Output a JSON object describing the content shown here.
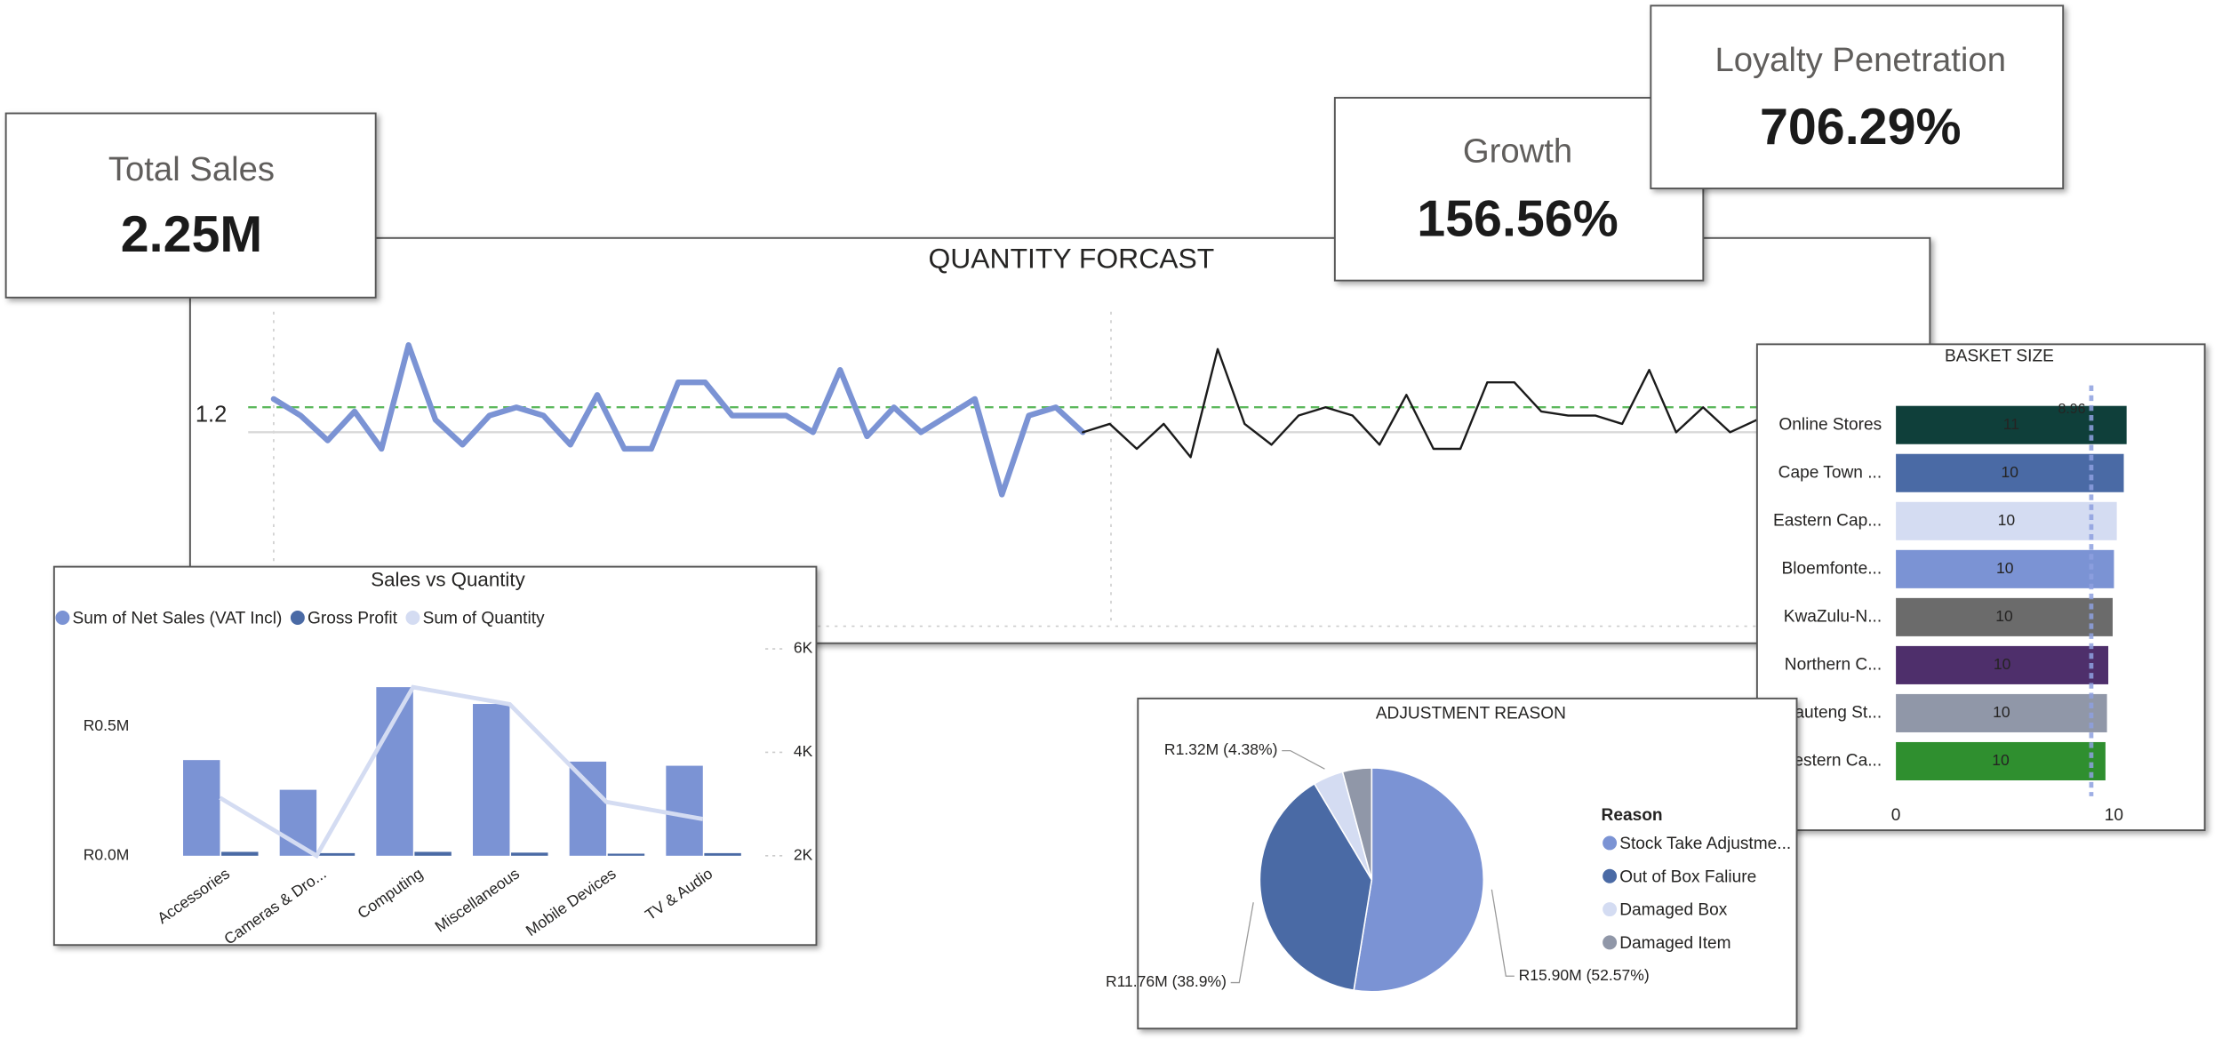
{
  "cards": [
    {
      "label": "Total Sales",
      "value": "2.25M"
    },
    {
      "label": "Growth",
      "value": "156.56%"
    },
    {
      "label": "Loyalty Penetration",
      "value": "706.29%"
    }
  ],
  "chart_data": [
    {
      "type": "line",
      "title": "QUANTITY FORCAST",
      "x": [
        0,
        1,
        2,
        3,
        4,
        5,
        6,
        7,
        8,
        9,
        10,
        11,
        12,
        13,
        14,
        15,
        16,
        17,
        18,
        19,
        20,
        21,
        22,
        23,
        24,
        25,
        26,
        27,
        28,
        29,
        30,
        31,
        32,
        33,
        34,
        35,
        36,
        37,
        38,
        39,
        40,
        41,
        42,
        43,
        44,
        45,
        46,
        47,
        48,
        49,
        50,
        51,
        52,
        53,
        54,
        55
      ],
      "series": [
        {
          "color": "#7b93d4",
          "width": 4,
          "values": [
            1.24,
            1.2,
            1.14,
            1.21,
            1.12,
            1.37,
            1.19,
            1.13,
            1.2,
            1.22,
            1.2,
            1.13,
            1.25,
            1.12,
            1.12,
            1.28,
            1.28,
            1.2,
            1.2,
            1.2,
            1.16,
            1.31,
            1.15,
            1.22,
            1.16,
            1.2,
            1.24,
            1.01,
            1.2,
            1.22,
            1.16,
            null,
            null,
            null,
            null,
            null,
            null,
            null,
            null,
            null,
            null,
            null,
            null,
            null,
            null,
            null,
            null,
            null,
            null,
            null,
            null,
            null,
            null,
            null,
            null,
            null
          ]
        },
        {
          "color": "#1b1b1b",
          "width": 1.5,
          "values": [
            null,
            null,
            null,
            null,
            null,
            null,
            null,
            null,
            null,
            null,
            null,
            null,
            null,
            null,
            null,
            null,
            null,
            null,
            null,
            null,
            null,
            null,
            null,
            null,
            null,
            null,
            null,
            null,
            null,
            null,
            1.16,
            1.18,
            1.12,
            1.18,
            1.1,
            1.36,
            1.18,
            1.13,
            1.2,
            1.22,
            1.2,
            1.13,
            1.25,
            1.12,
            1.12,
            1.28,
            1.28,
            1.21,
            1.2,
            1.2,
            1.18,
            1.31,
            1.16,
            1.22,
            1.16,
            1.19
          ]
        }
      ],
      "xlim": [
        0,
        55
      ],
      "ylim": [
        0.7,
        1.45
      ],
      "yticks": [
        1.2
      ],
      "reference_lines": [
        {
          "value": 1.22,
          "color": "#5cb85c",
          "dashed": true
        },
        {
          "value": 1.16,
          "color": "#d9d9d9",
          "dashed": false
        }
      ]
    },
    {
      "type": "combo",
      "title": "Sales vs Quantity",
      "categories": [
        "Accessories",
        "Cameras & Dro...",
        "Computing",
        "Miscellaneous",
        "Mobile Devices",
        "TV & Audio"
      ],
      "series": [
        {
          "name": "Sum of Net Sales (VAT Incl)",
          "color": "#7b93d4",
          "kind": "bar",
          "values": [
            370000,
            255000,
            652000,
            587000,
            364000,
            348000
          ]
        },
        {
          "name": "Gross Profit",
          "color": "#4a6aa5",
          "kind": "bar",
          "values": [
            15000,
            10000,
            15000,
            12000,
            8000,
            10000
          ]
        },
        {
          "name": "Sum of Quantity",
          "color": "#d4dcf2",
          "kind": "line",
          "axis": "y2",
          "values": [
            3120,
            2000,
            5260,
            4930,
            3040,
            2710
          ]
        }
      ],
      "ylim": [
        0,
        800000
      ],
      "yticks": [
        {
          "value": 0,
          "label": "R0.0M"
        },
        {
          "value": 500000,
          "label": "R0.5M"
        }
      ],
      "y2lim": [
        2000,
        6000
      ],
      "y2ticks": [
        {
          "value": 2000,
          "label": "2K"
        },
        {
          "value": 4000,
          "label": "4K"
        },
        {
          "value": 6000,
          "label": "6K"
        }
      ]
    },
    {
      "type": "hbar",
      "title": "BASKET SIZE",
      "categories": [
        "Online Stores",
        "Cape Town ...",
        "Eastern Cap...",
        "Bloemfonte...",
        "KwaZulu-N...",
        "Northern C...",
        "Gauteng St...",
        "Western Ca..."
      ],
      "values": [
        10.58,
        10.45,
        10.13,
        10.0,
        9.94,
        9.74,
        9.68,
        9.61
      ],
      "value_labels": [
        "11",
        "10",
        "10",
        "10",
        "10",
        "10",
        "10",
        "10"
      ],
      "colors": [
        "#0f3f3a",
        "#4a6aa5",
        "#d4dcf2",
        "#7b93d4",
        "#6b6b6b",
        "#4e2f6b",
        "#9097a8",
        "#2f8f2f"
      ],
      "xlim": [
        0,
        11.5
      ],
      "xticks": [
        0,
        10
      ],
      "average_line": {
        "value": 8.96,
        "color": "#8ea0e0"
      }
    },
    {
      "type": "pie",
      "title": "ADJUSTMENT REASON",
      "legend_title": "Reason",
      "categories": [
        "Stock Take Adjustme...",
        "Out of Box Faliure",
        "Damaged Box",
        "Damaged Item"
      ],
      "values": [
        15.9,
        11.76,
        1.32,
        1.27
      ],
      "value_labels": [
        "R15.90M (52.57%)",
        "R11.76M (38.9%)",
        "R1.32M (4.38%)",
        null
      ],
      "colors": [
        "#7b93d4",
        "#4a6aa5",
        "#d4dcf2",
        "#9097a8"
      ]
    }
  ]
}
